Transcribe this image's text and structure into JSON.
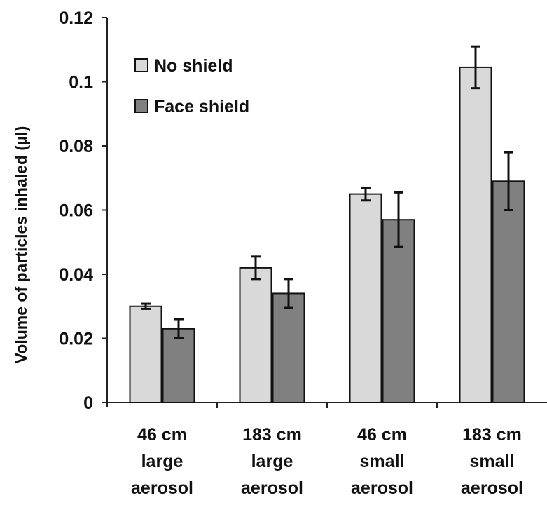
{
  "chart_data": {
    "type": "bar",
    "title": "",
    "xlabel": "",
    "ylabel": "Volume of particles inhaled (µl)",
    "ylim": [
      0,
      0.12
    ],
    "yticks": [
      "0",
      "0.02",
      "0.04",
      "0.06",
      "0.08",
      "0.1",
      "0.12"
    ],
    "grid": false,
    "legend_position": "top-left",
    "categories": [
      [
        "46 cm",
        "large",
        "aerosol"
      ],
      [
        "183 cm",
        "large",
        "aerosol"
      ],
      [
        "46 cm",
        "small",
        "aerosol"
      ],
      [
        "183 cm",
        "small",
        "aerosol"
      ]
    ],
    "series": [
      {
        "name": "No shield",
        "color": "#d9d9d9",
        "values": [
          0.03,
          0.042,
          0.065,
          0.1045
        ],
        "errors": [
          0.0008,
          0.0035,
          0.002,
          0.0065
        ]
      },
      {
        "name": "Face shield",
        "color": "#808080",
        "values": [
          0.023,
          0.034,
          0.057,
          0.069
        ],
        "errors": [
          0.003,
          0.0045,
          0.0085,
          0.009
        ]
      }
    ]
  }
}
